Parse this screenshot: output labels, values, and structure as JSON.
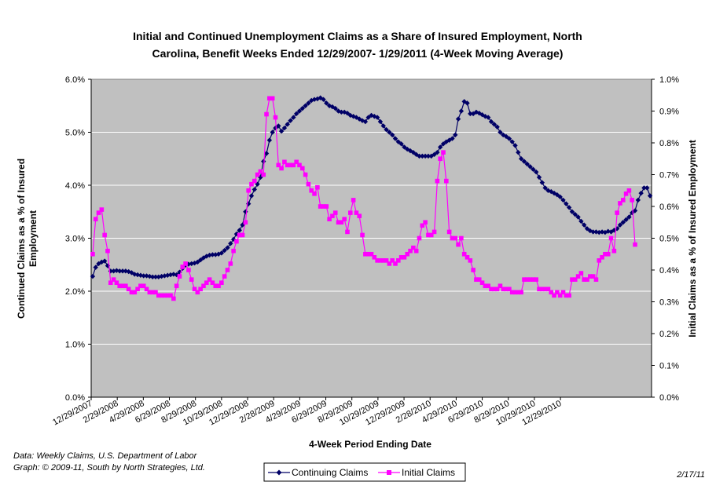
{
  "chart_data": {
    "type": "line",
    "title_line1": "Initial and Continued Unemployment Claims as a Share of Insured Employment, North",
    "title_line2": "Carolina, Benefit Weeks Ended 12/29/2007- 1/29/2011 (4-Week Moving Average)",
    "xlabel": "4-Week Period Ending Date",
    "ylabel_left_line1": "Continued Claims as a % of Insured",
    "ylabel_left_line2": "Employment",
    "ylabel_right": "Initial Claims as a % of Insured Employment",
    "x_tick_labels": [
      "12/29/2007",
      "2/29/2008",
      "4/29/2008",
      "6/29/2008",
      "8/29/2008",
      "10/29/2008",
      "12/29/2008",
      "2/28/2009",
      "4/29/2009",
      "6/29/2009",
      "8/29/2009",
      "10/29/2009",
      "12/29/2009",
      "2/28/2010",
      "4/29/2010",
      "6/29/2010",
      "8/29/2010",
      "10/29/2010",
      "12/29/2010"
    ],
    "y_left_ticks": [
      "0.0%",
      "1.0%",
      "2.0%",
      "3.0%",
      "4.0%",
      "5.0%",
      "6.0%"
    ],
    "y_right_ticks": [
      "0.0%",
      "0.1%",
      "0.2%",
      "0.3%",
      "0.4%",
      "0.5%",
      "0.6%",
      "0.7%",
      "0.8%",
      "0.9%",
      "1.0%"
    ],
    "y_left_range": [
      0,
      6.0
    ],
    "y_right_range": [
      0,
      1.0
    ],
    "grid": "horizontal",
    "legend_position": "bottom-center",
    "series": [
      {
        "name": "Continuing Claims",
        "axis": "left",
        "color": "#000066",
        "marker": "diamond",
        "values": [
          2.28,
          2.45,
          2.52,
          2.55,
          2.57,
          2.48,
          2.38,
          2.38,
          2.39,
          2.38,
          2.38,
          2.38,
          2.37,
          2.35,
          2.32,
          2.31,
          2.3,
          2.29,
          2.29,
          2.28,
          2.27,
          2.27,
          2.27,
          2.28,
          2.29,
          2.3,
          2.31,
          2.32,
          2.31,
          2.36,
          2.43,
          2.49,
          2.51,
          2.52,
          2.53,
          2.55,
          2.59,
          2.63,
          2.66,
          2.68,
          2.69,
          2.69,
          2.7,
          2.72,
          2.77,
          2.82,
          2.9,
          2.98,
          3.08,
          3.15,
          3.25,
          3.5,
          3.65,
          3.8,
          3.92,
          4.02,
          4.15,
          4.45,
          4.6,
          4.85,
          5.0,
          5.08,
          5.12,
          5.02,
          5.08,
          5.15,
          5.22,
          5.28,
          5.35,
          5.4,
          5.45,
          5.5,
          5.55,
          5.6,
          5.62,
          5.63,
          5.65,
          5.62,
          5.55,
          5.5,
          5.48,
          5.45,
          5.4,
          5.38,
          5.38,
          5.36,
          5.32,
          5.3,
          5.28,
          5.25,
          5.22,
          5.2,
          5.28,
          5.32,
          5.3,
          5.28,
          5.2,
          5.12,
          5.05,
          5.0,
          4.95,
          4.88,
          4.82,
          4.78,
          4.72,
          4.68,
          4.65,
          4.62,
          4.58,
          4.55,
          4.55,
          4.55,
          4.55,
          4.55,
          4.58,
          4.62,
          4.72,
          4.78,
          4.82,
          4.85,
          4.88,
          4.95,
          5.25,
          5.4,
          5.58,
          5.55,
          5.35,
          5.35,
          5.38,
          5.36,
          5.33,
          5.3,
          5.28,
          5.2,
          5.15,
          5.1,
          5.0,
          4.95,
          4.92,
          4.88,
          4.82,
          4.75,
          4.62,
          4.5,
          4.45,
          4.4,
          4.35,
          4.3,
          4.25,
          4.15,
          4.05,
          3.95,
          3.9,
          3.88,
          3.85,
          3.82,
          3.78,
          3.72,
          3.65,
          3.58,
          3.5,
          3.45,
          3.4,
          3.32,
          3.25,
          3.18,
          3.14,
          3.12,
          3.12,
          3.11,
          3.12,
          3.11,
          3.13,
          3.12,
          3.15,
          3.18,
          3.25,
          3.3,
          3.35,
          3.4,
          3.48,
          3.52,
          3.72,
          3.85,
          3.95,
          3.95,
          3.8
        ]
      },
      {
        "name": "Initial Claims",
        "axis": "right",
        "color": "#ff00ff",
        "marker": "square",
        "values": [
          0.45,
          0.56,
          0.58,
          0.59,
          0.51,
          0.46,
          0.36,
          0.37,
          0.36,
          0.35,
          0.35,
          0.35,
          0.34,
          0.33,
          0.33,
          0.34,
          0.35,
          0.35,
          0.34,
          0.33,
          0.33,
          0.33,
          0.32,
          0.32,
          0.32,
          0.32,
          0.32,
          0.31,
          0.35,
          0.38,
          0.41,
          0.42,
          0.4,
          0.37,
          0.34,
          0.33,
          0.34,
          0.35,
          0.36,
          0.37,
          0.36,
          0.35,
          0.35,
          0.36,
          0.38,
          0.4,
          0.42,
          0.46,
          0.49,
          0.51,
          0.51,
          0.55,
          0.65,
          0.67,
          0.68,
          0.7,
          0.71,
          0.7,
          0.89,
          0.94,
          0.94,
          0.88,
          0.73,
          0.72,
          0.74,
          0.73,
          0.73,
          0.73,
          0.74,
          0.73,
          0.72,
          0.7,
          0.67,
          0.65,
          0.64,
          0.66,
          0.6,
          0.6,
          0.6,
          0.56,
          0.57,
          0.58,
          0.55,
          0.55,
          0.56,
          0.52,
          0.58,
          0.62,
          0.58,
          0.57,
          0.51,
          0.45,
          0.45,
          0.45,
          0.44,
          0.43,
          0.43,
          0.43,
          0.43,
          0.42,
          0.43,
          0.42,
          0.43,
          0.44,
          0.44,
          0.45,
          0.46,
          0.47,
          0.46,
          0.5,
          0.54,
          0.55,
          0.51,
          0.51,
          0.52,
          0.68,
          0.75,
          0.77,
          0.68,
          0.52,
          0.5,
          0.5,
          0.48,
          0.5,
          0.45,
          0.44,
          0.43,
          0.4,
          0.37,
          0.37,
          0.36,
          0.35,
          0.35,
          0.34,
          0.34,
          0.34,
          0.35,
          0.34,
          0.34,
          0.34,
          0.33,
          0.33,
          0.33,
          0.33,
          0.37,
          0.37,
          0.37,
          0.37,
          0.37,
          0.34,
          0.34,
          0.34,
          0.34,
          0.33,
          0.32,
          0.33,
          0.32,
          0.33,
          0.32,
          0.32,
          0.37,
          0.37,
          0.38,
          0.39,
          0.37,
          0.37,
          0.38,
          0.38,
          0.37,
          0.43,
          0.44,
          0.45,
          0.45,
          0.5,
          0.46,
          0.58,
          0.61,
          0.62,
          0.64,
          0.65,
          0.62,
          0.48
        ]
      }
    ]
  },
  "footer": {
    "source_line1": "Data:  Weekly Claims, U.S. Department of Labor",
    "source_line2": "Graph: © 2009-11, South by North Strategies, Ltd.",
    "date": "2/17/11"
  }
}
